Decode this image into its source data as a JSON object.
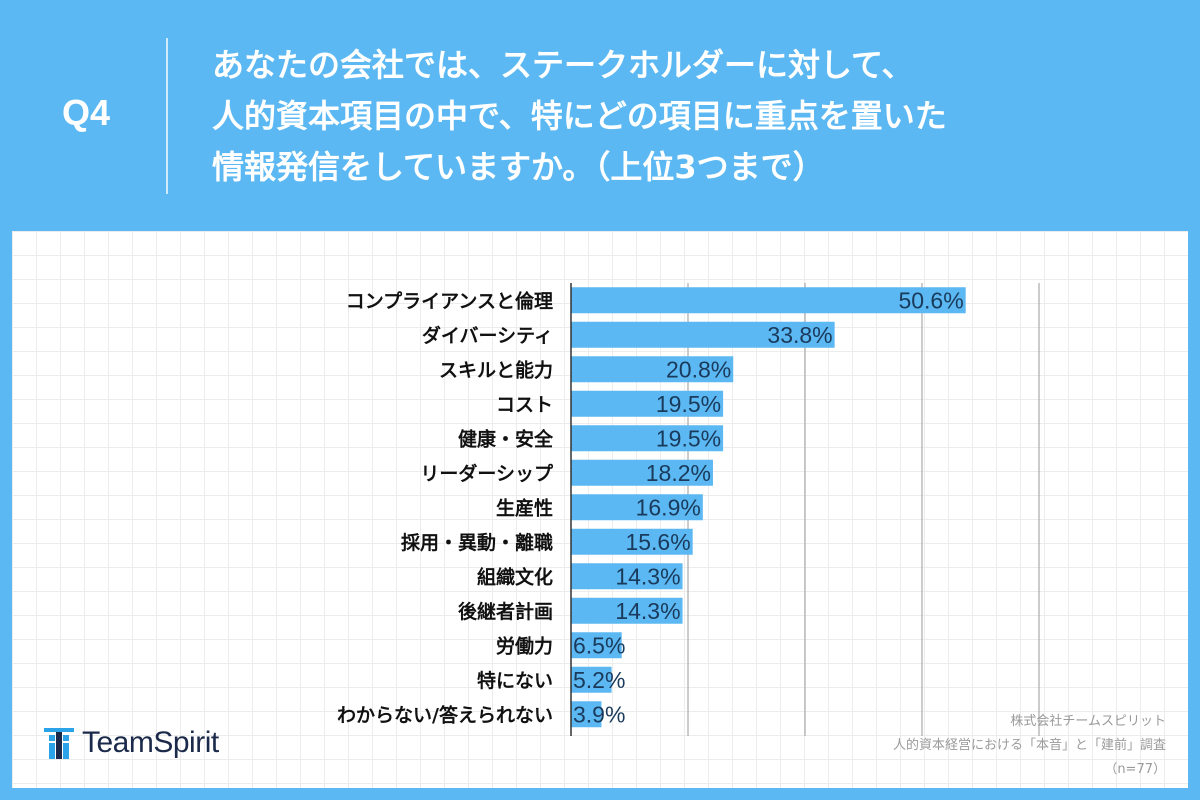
{
  "header": {
    "q_label": "Q4",
    "question_lines": [
      "あなたの会社では、ステークホルダーに対して、",
      "人的資本項目の中で、特にどの項目に重点を置いた",
      "情報発信をしていますか。（上位3つまで）"
    ]
  },
  "logo": {
    "text": "TeamSpirit",
    "icon": "teamspirit-logo-icon"
  },
  "source": {
    "company": "株式会社チームスピリット",
    "survey": "人的資本経営における「本音」と「建前」調査",
    "n": "（n=77）"
  },
  "colors": {
    "background": "#5bb8f2",
    "bar": "#5bb8f2",
    "value_text": "#1a3a5c"
  },
  "chart_data": {
    "type": "bar",
    "orientation": "horizontal",
    "categories": [
      "コンプライアンスと倫理",
      "ダイバーシティ",
      "スキルと能力",
      "コスト",
      "健康・安全",
      "リーダーシップ",
      "生産性",
      "採用・異動・離職",
      "組織文化",
      "後継者計画",
      "労働力",
      "特にない",
      "わからない/答えられない"
    ],
    "values": [
      50.6,
      33.8,
      20.8,
      19.5,
      19.5,
      18.2,
      16.9,
      15.6,
      14.3,
      14.3,
      6.5,
      5.2,
      3.9
    ],
    "value_labels": [
      "50.6%",
      "33.8%",
      "20.8%",
      "19.5%",
      "19.5%",
      "18.2%",
      "16.9%",
      "15.6%",
      "14.3%",
      "14.3%",
      "6.5%",
      "5.2%",
      "3.9%"
    ],
    "xlim": [
      0,
      60
    ],
    "grid": true
  }
}
